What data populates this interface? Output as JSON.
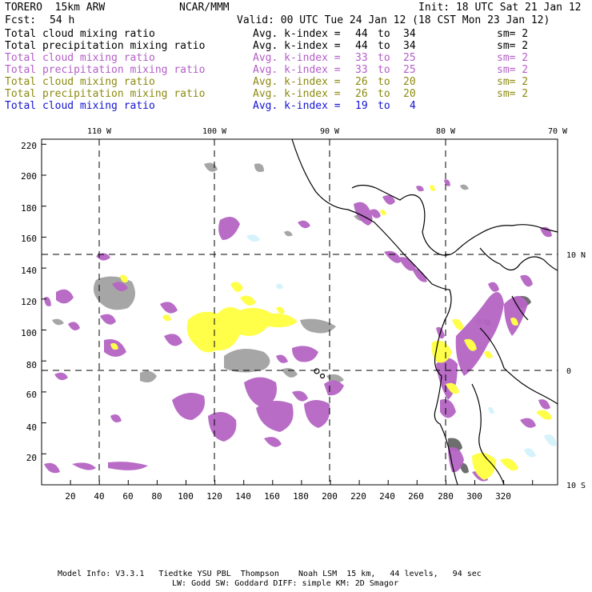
{
  "header": {
    "model": "TORERO  15km ARW",
    "org": "NCAR/MMM",
    "init": "Init: 18 UTC Sat 21 Jan 12",
    "fcst_label": "Fcst:",
    "fcst_value": "54 h",
    "valid": "Valid: 00 UTC Tue 24 Jan 12 (18 CST Mon 23 Jan 12)"
  },
  "legend_rows": [
    {
      "field": "Total cloud mixing ratio",
      "avg": "Avg. k-index =",
      "from": "44",
      "to_word": "to",
      "to": "34",
      "sm": "sm= 2",
      "color": "#000000"
    },
    {
      "field": "Total precipitation mixing ratio",
      "avg": "Avg. k-index =",
      "from": "44",
      "to_word": "to",
      "to": "34",
      "sm": "sm= 2",
      "color": "#000000"
    },
    {
      "field": "Total cloud mixing ratio",
      "avg": "Avg. k-index =",
      "from": "33",
      "to_word": "to",
      "to": "25",
      "sm": "sm= 2",
      "color": "#b35ec6"
    },
    {
      "field": "Total precipitation mixing ratio",
      "avg": "Avg. k-index =",
      "from": "33",
      "to_word": "to",
      "to": "25",
      "sm": "sm= 2",
      "color": "#b35ec6"
    },
    {
      "field": "Total cloud mixing ratio",
      "avg": "Avg. k-index =",
      "from": "26",
      "to_word": "to",
      "to": "20",
      "sm": "sm= 2",
      "color": "#8c8a10"
    },
    {
      "field": "Total precipitation mixing ratio",
      "avg": "Avg. k-index =",
      "from": "26",
      "to_word": "to",
      "to": "20",
      "sm": "sm= 2",
      "color": "#8c8a10"
    },
    {
      "field": "Total cloud mixing ratio",
      "avg": "Avg. k-index =",
      "from": "19",
      "to_word": "to",
      "to": "4",
      "sm": "",
      "color": "#1414d2"
    }
  ],
  "map": {
    "lon_labels": [
      "110 W",
      "100 W",
      "90 W",
      "80 W",
      "70 W"
    ],
    "lat_labels": [
      "10 N",
      "0",
      "10 S"
    ],
    "x_ticks": [
      "20",
      "40",
      "60",
      "80",
      "100",
      "120",
      "140",
      "160",
      "180",
      "200",
      "220",
      "240",
      "260",
      "280",
      "300",
      "320"
    ],
    "y_ticks": [
      "20",
      "40",
      "60",
      "80",
      "100",
      "120",
      "140",
      "160",
      "180",
      "200",
      "220"
    ],
    "colors": {
      "cloud_gray": "#a6a6a6",
      "dark_gray": "#6e6e6e",
      "purple": "#b565c4",
      "yellow": "#ffff4a",
      "light_blue": "#d6f2fb",
      "coast": "#000000"
    }
  },
  "footer": {
    "line1": "Model Info: V3.3.1   Tiedtke YSU PBL  Thompson    Noah LSM  15 km,   44 levels,   94 sec",
    "line2": "LW: Godd SW: Goddard DIFF: simple KM: 2D Smagor"
  }
}
